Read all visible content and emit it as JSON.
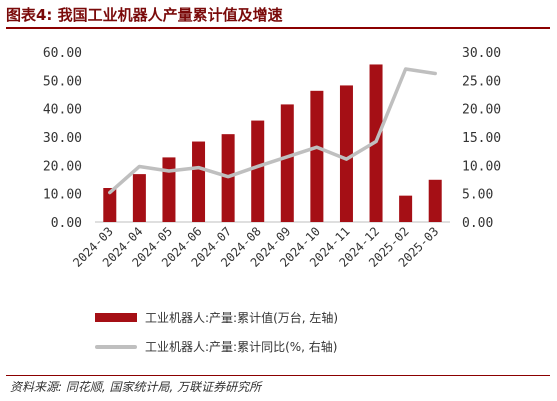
{
  "figure": {
    "title": "图表4:  我国工业机器人产量累计值及增速",
    "source": "资料来源: 同花顺, 国家统计局, 万联证券研究所"
  },
  "colors": {
    "bar": "#a50f15",
    "line": "#bfbfbf",
    "accent": "#8b0000"
  },
  "chart_data": {
    "type": "bar",
    "categories": [
      "2024-03",
      "2024-04",
      "2024-05",
      "2024-06",
      "2024-07",
      "2024-08",
      "2024-09",
      "2024-10",
      "2024-11",
      "2024-12",
      "2025-02",
      "2025-03"
    ],
    "series": [
      {
        "name": "工业机器人:产量:累计值(万台, 左轴)",
        "type": "bar",
        "axis": "left",
        "values": [
          12.0,
          16.9,
          22.8,
          28.4,
          31.0,
          35.8,
          41.5,
          46.3,
          48.2,
          55.6,
          9.3,
          14.9
        ]
      },
      {
        "name": "工业机器人:产量:累计同比(%, 右轴)",
        "type": "line",
        "axis": "right",
        "values": [
          5.2,
          9.8,
          9.0,
          9.6,
          8.0,
          9.8,
          11.5,
          13.2,
          11.1,
          14.2,
          27.0,
          26.2
        ]
      }
    ],
    "y_left": {
      "lim": [
        0,
        60
      ],
      "ticks": [
        "0.00",
        "10.00",
        "20.00",
        "30.00",
        "40.00",
        "50.00",
        "60.00"
      ]
    },
    "y_right": {
      "lim": [
        0,
        30
      ],
      "ticks": [
        "0.00",
        "5.00",
        "10.00",
        "15.00",
        "20.00",
        "25.00",
        "30.00"
      ]
    },
    "grid": false,
    "legend_position": "bottom"
  }
}
